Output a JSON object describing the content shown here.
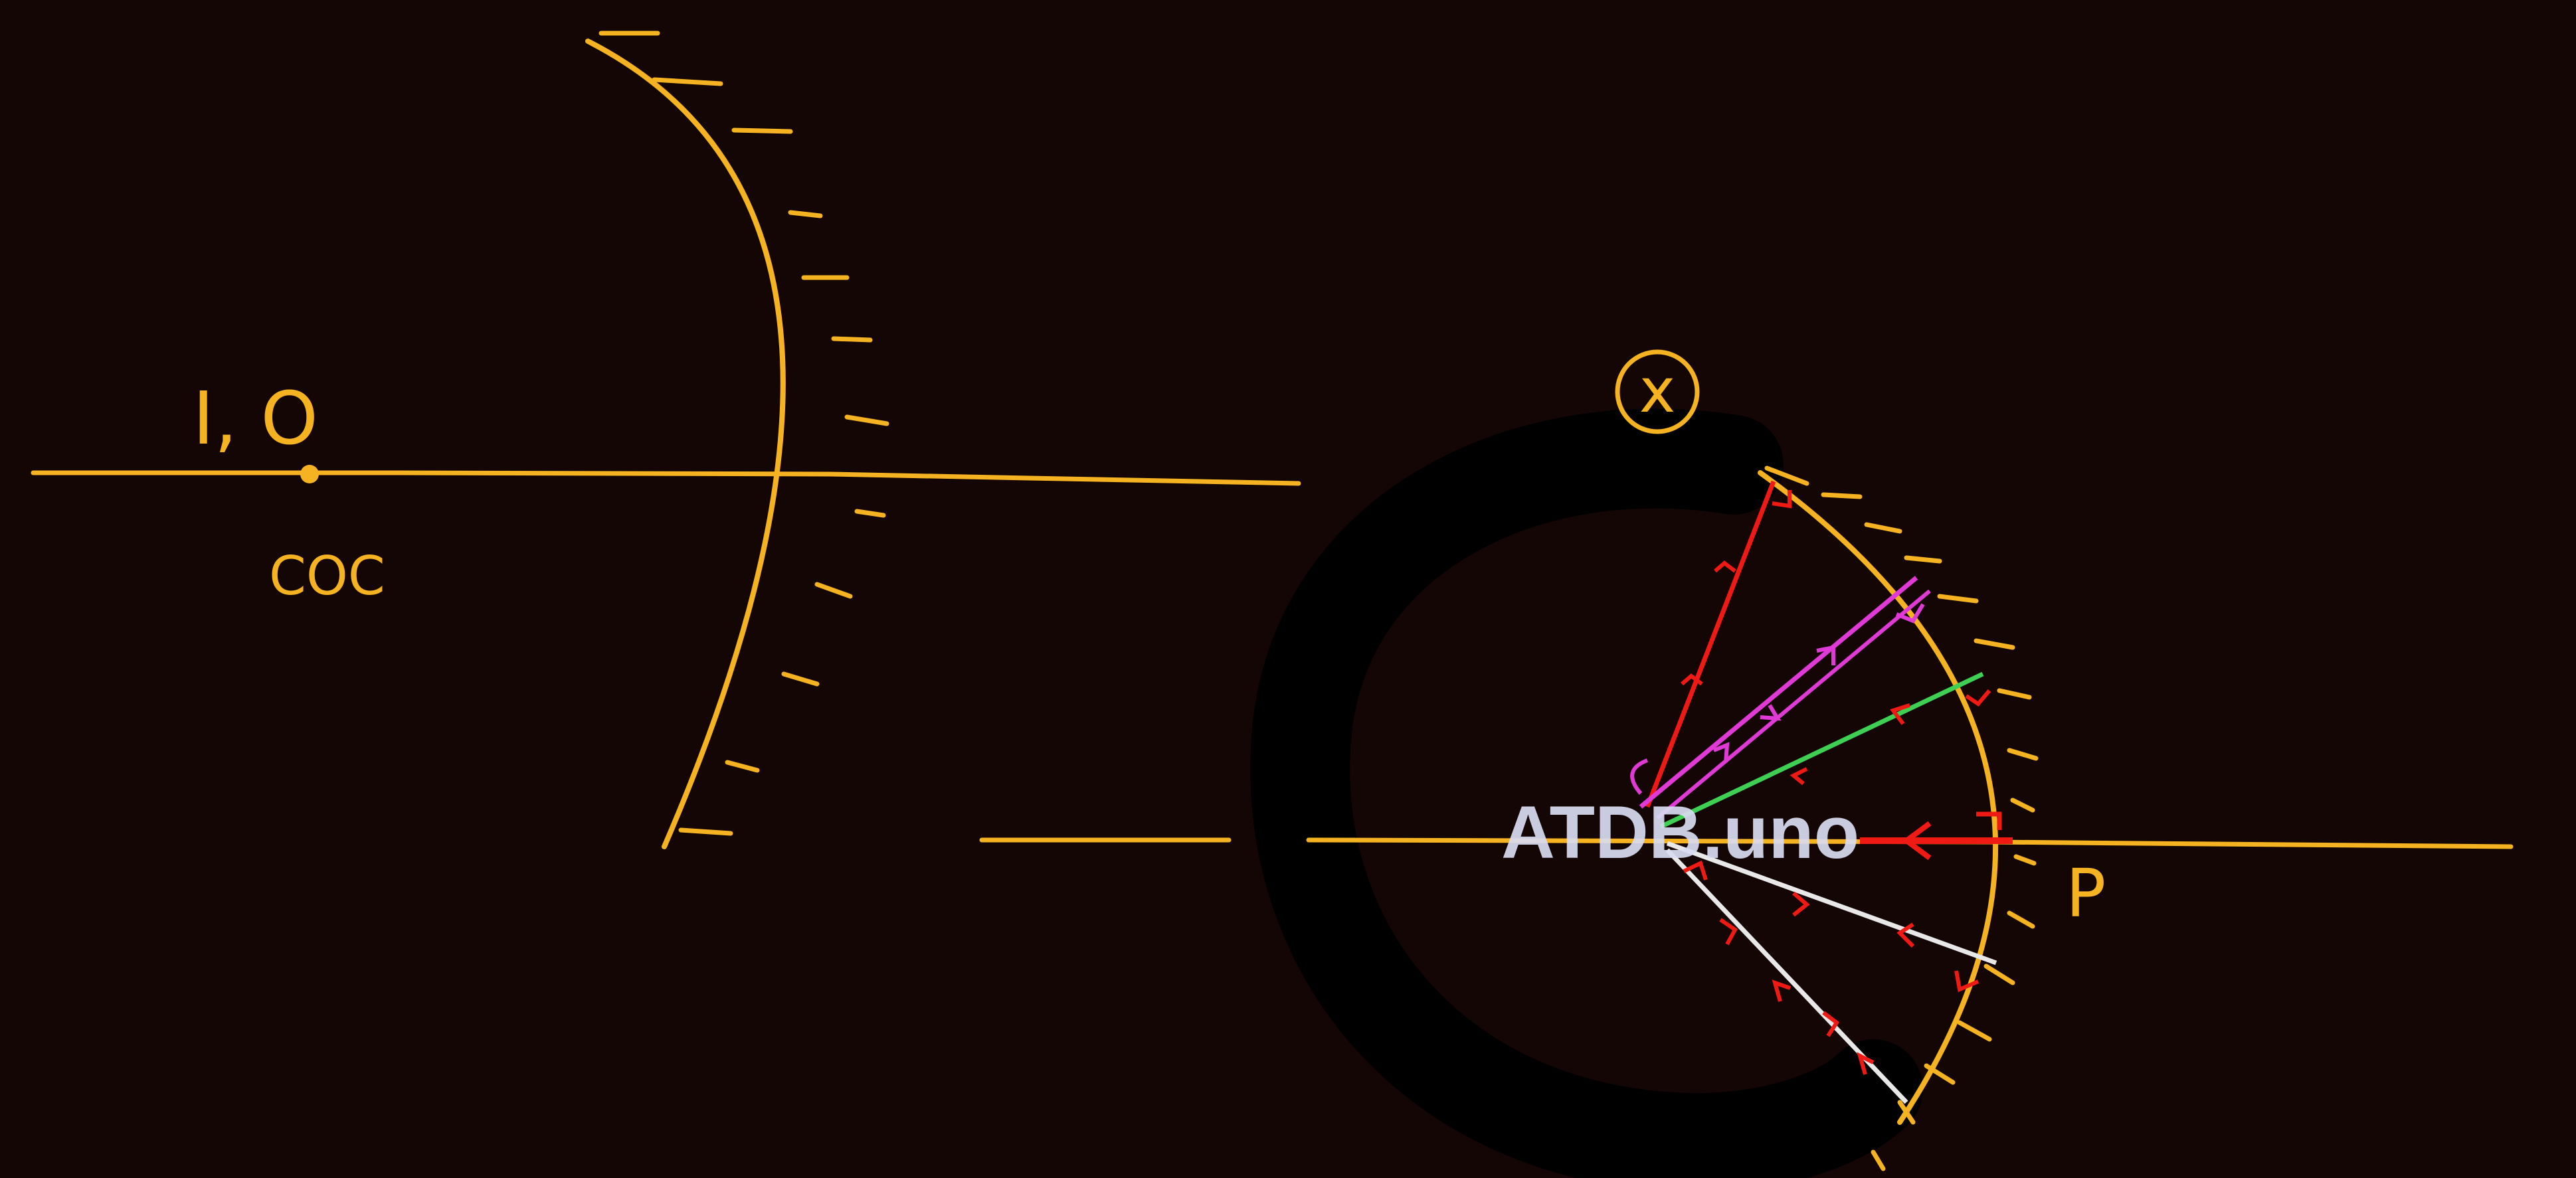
{
  "colors": {
    "background": "#140605",
    "axis": "#f6b321",
    "mirror": "#f6b321",
    "ray_red": "#f01a14",
    "ray_magenta": "#e03ad6",
    "ray_green": "#3fcf52",
    "ray_white": "#e8e8e8",
    "smudge": "#000000",
    "watermark": "#d9dcf2"
  },
  "left_figure": {
    "point_label": "I, O",
    "center_label": "COC"
  },
  "right_figure": {
    "circled_mark": "x",
    "pole_label": "P"
  },
  "watermark": "ATDB.uno"
}
